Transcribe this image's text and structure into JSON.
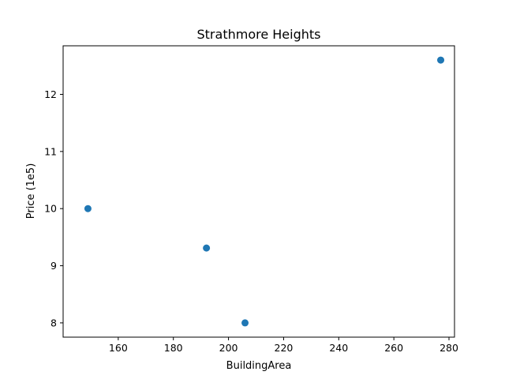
{
  "chart_data": {
    "type": "scatter",
    "title": "Strathmore Heights",
    "xlabel": "BuildingArea",
    "ylabel": "Price (1e5)",
    "xlim": [
      140,
      282
    ],
    "ylim": [
      7.75,
      12.85
    ],
    "xticks": [
      160,
      180,
      200,
      220,
      240,
      260,
      280
    ],
    "yticks": [
      8,
      9,
      10,
      11,
      12
    ],
    "grid": false,
    "marker_color": "#1f77b4",
    "points": [
      {
        "x": 149,
        "y": 10.0
      },
      {
        "x": 192,
        "y": 9.31
      },
      {
        "x": 206,
        "y": 8.0
      },
      {
        "x": 277,
        "y": 12.6
      }
    ]
  }
}
